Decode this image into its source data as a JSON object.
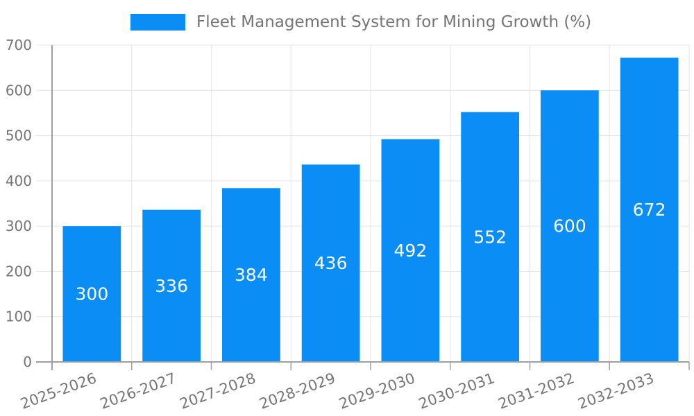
{
  "chart_data": {
    "type": "bar",
    "title": "Fleet Management System for Mining Growth (%)",
    "legend": {
      "label": "Fleet Management System for Mining Growth (%)",
      "position": "top-center"
    },
    "categories": [
      "2025-2026",
      "2026-2027",
      "2027-2028",
      "2028-2029",
      "2029-2030",
      "2030-2031",
      "2031-2032",
      "2032-2033"
    ],
    "values": [
      300,
      336,
      384,
      436,
      492,
      552,
      600,
      672
    ],
    "value_labels": [
      "300",
      "336",
      "384",
      "436",
      "492",
      "552",
      "600",
      "672"
    ],
    "xlabel": "",
    "ylabel": "",
    "ylim": [
      0,
      700
    ],
    "yticks": [
      0,
      100,
      200,
      300,
      400,
      500,
      600,
      700
    ],
    "grid": true,
    "colors": {
      "bar": "#0a8ef6",
      "value_label": "#ffffff",
      "axis": "#a0a0a0",
      "grid_line": "#e5e5e5",
      "tick_text": "#757575"
    }
  }
}
